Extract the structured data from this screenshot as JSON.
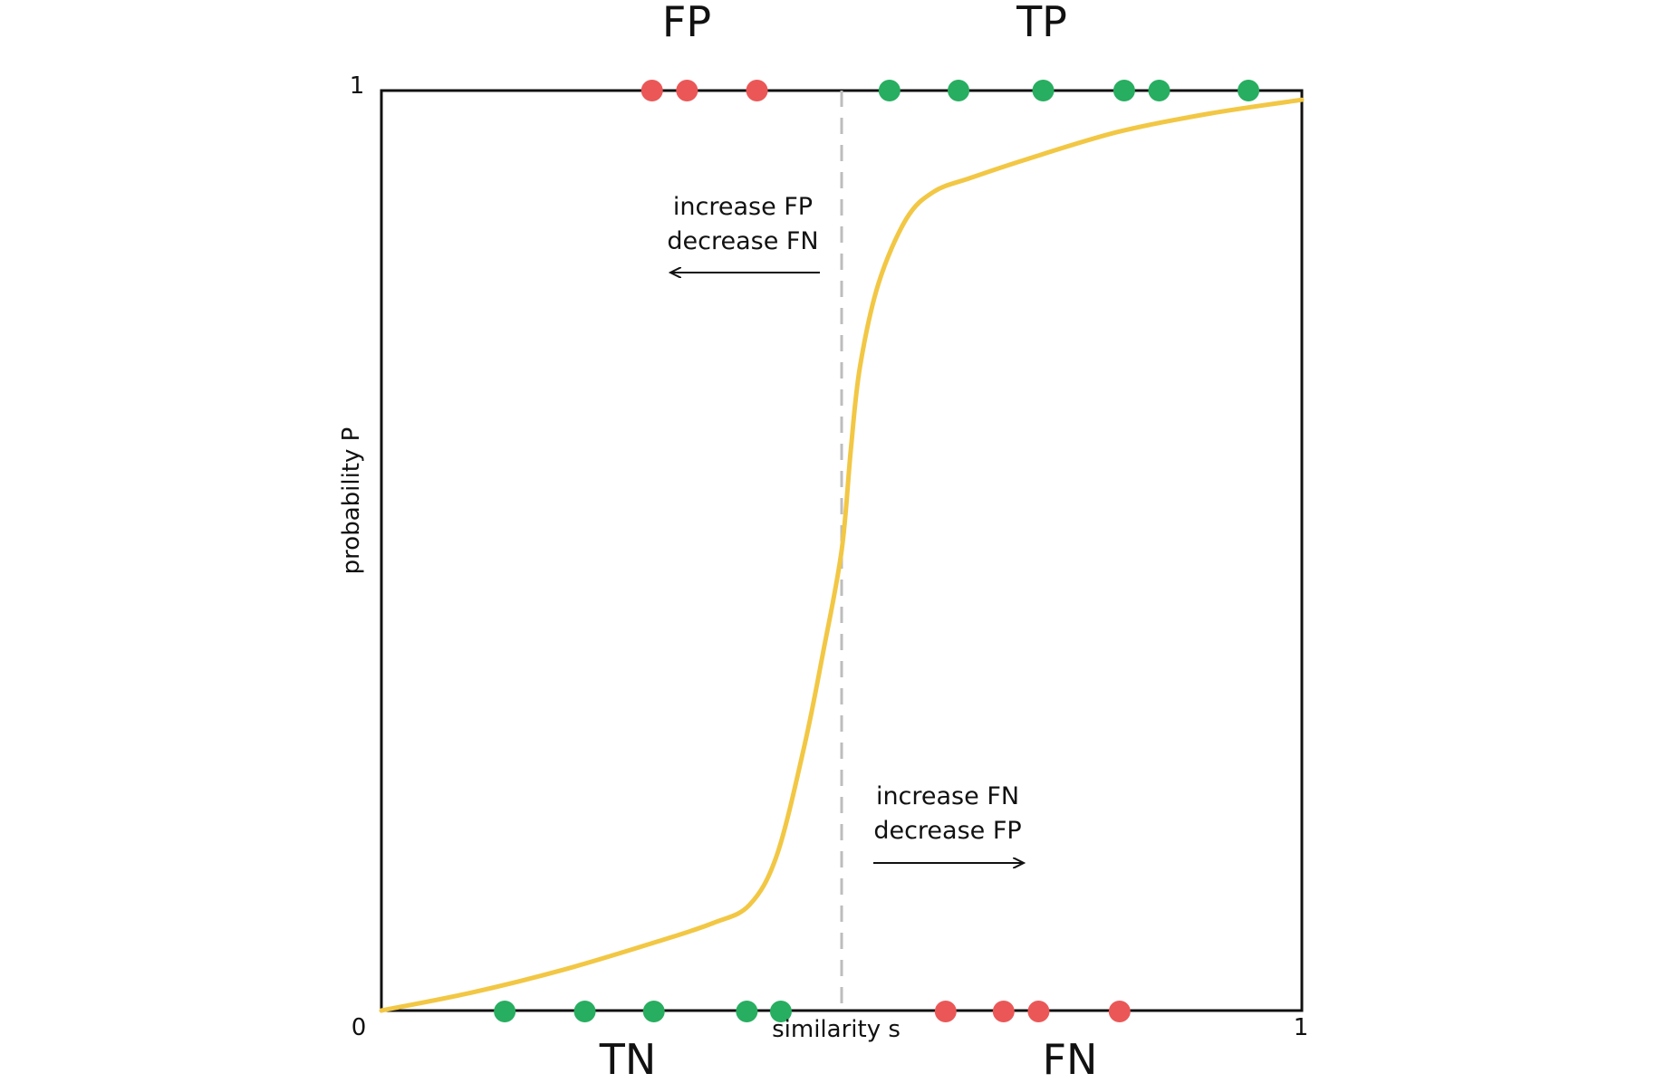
{
  "chart_data": {
    "type": "line",
    "xlabel": "similarity  s",
    "ylabel": "probability  P",
    "xlim": [
      0,
      1
    ],
    "ylim": [
      0,
      1
    ],
    "x_ticks": [
      {
        "value": 0,
        "label": "0"
      },
      {
        "value": 1,
        "label": "1"
      }
    ],
    "y_ticks": [
      {
        "value": 1,
        "label": "1"
      }
    ],
    "threshold": 0.5,
    "curve": {
      "color": "#f2c744",
      "points": [
        [
          0.0,
          0.0
        ],
        [
          0.1,
          0.02
        ],
        [
          0.2,
          0.045
        ],
        [
          0.3,
          0.075
        ],
        [
          0.36,
          0.095
        ],
        [
          0.4,
          0.115
        ],
        [
          0.43,
          0.17
        ],
        [
          0.46,
          0.29
        ],
        [
          0.48,
          0.39
        ],
        [
          0.5,
          0.5
        ],
        [
          0.51,
          0.61
        ],
        [
          0.52,
          0.7
        ],
        [
          0.54,
          0.79
        ],
        [
          0.57,
          0.86
        ],
        [
          0.6,
          0.89
        ],
        [
          0.64,
          0.905
        ],
        [
          0.7,
          0.925
        ],
        [
          0.8,
          0.955
        ],
        [
          0.9,
          0.975
        ],
        [
          1.0,
          0.99
        ]
      ]
    },
    "points_top": [
      {
        "x": 0.294,
        "cls": "false"
      },
      {
        "x": 0.332,
        "cls": "false"
      },
      {
        "x": 0.408,
        "cls": "false"
      },
      {
        "x": 0.552,
        "cls": "true"
      },
      {
        "x": 0.627,
        "cls": "true"
      },
      {
        "x": 0.719,
        "cls": "true"
      },
      {
        "x": 0.807,
        "cls": "true"
      },
      {
        "x": 0.845,
        "cls": "true"
      },
      {
        "x": 0.942,
        "cls": "true"
      }
    ],
    "points_bottom": [
      {
        "x": 0.134,
        "cls": "true"
      },
      {
        "x": 0.221,
        "cls": "true"
      },
      {
        "x": 0.296,
        "cls": "true"
      },
      {
        "x": 0.397,
        "cls": "true"
      },
      {
        "x": 0.434,
        "cls": "true"
      },
      {
        "x": 0.613,
        "cls": "false"
      },
      {
        "x": 0.676,
        "cls": "false"
      },
      {
        "x": 0.714,
        "cls": "false"
      },
      {
        "x": 0.802,
        "cls": "false"
      }
    ],
    "colors": {
      "true": "#27ae60",
      "false": "#eb5757",
      "frame": "#111111",
      "threshold": "#bdbdbd"
    },
    "quadrant_labels": {
      "fp": "FP",
      "tp": "TP",
      "tn": "TN",
      "fn": "FN"
    },
    "annotations": {
      "left": {
        "line1": "increase FP",
        "line2": "decrease FN",
        "direction": "left"
      },
      "right": {
        "line1": "increase FN",
        "line2": "decrease FP",
        "direction": "right"
      }
    }
  }
}
